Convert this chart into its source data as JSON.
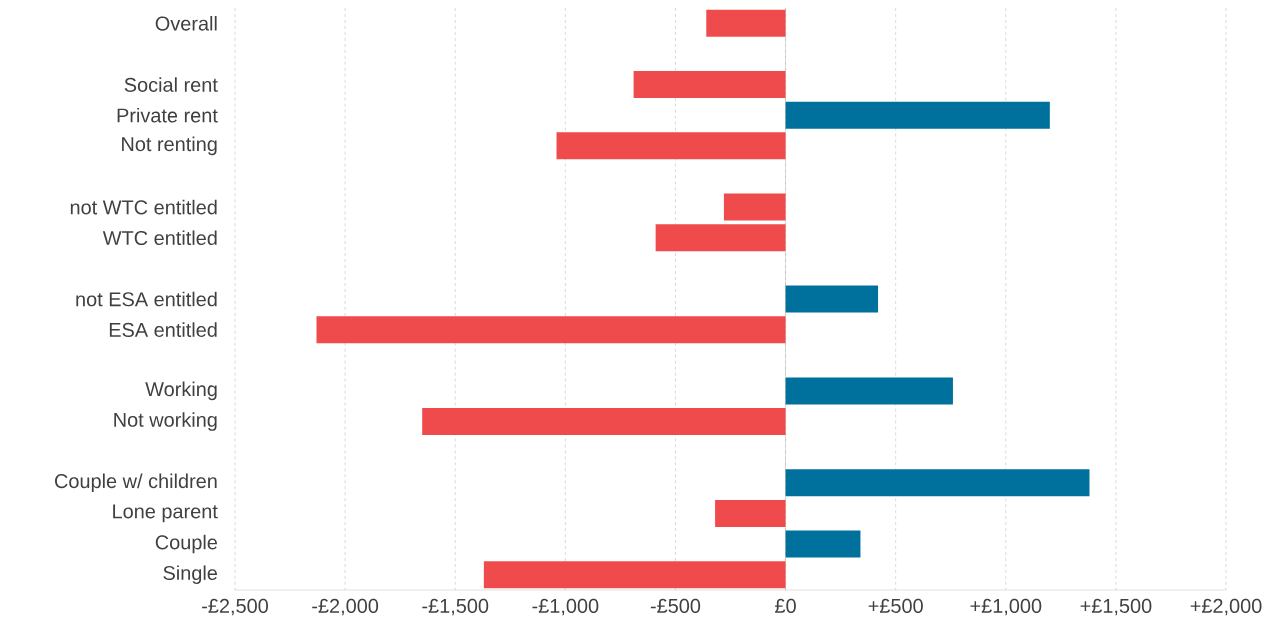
{
  "chart_data": {
    "type": "bar",
    "orientation": "horizontal",
    "categories": [
      "Overall",
      null,
      "Social rent",
      "Private rent",
      "Not renting",
      null,
      "not WTC entitled",
      "WTC entitled",
      null,
      "not ESA entitled",
      "ESA entitled",
      null,
      "Working",
      "Not working",
      null,
      "Couple w/ children",
      "Lone parent",
      "Couple",
      "Single"
    ],
    "values": [
      -360,
      null,
      -690,
      1200,
      -1040,
      null,
      -280,
      -590,
      null,
      420,
      -2130,
      null,
      760,
      -1650,
      null,
      1380,
      -320,
      340,
      -1370
    ],
    "colors": [
      "#f04b4c",
      null,
      "#f04b4c",
      "#00719c",
      "#f04b4c",
      null,
      "#f04b4c",
      "#f04b4c",
      null,
      "#00719c",
      "#f04b4c",
      null,
      "#00719c",
      "#f04b4c",
      null,
      "#00719c",
      "#f04b4c",
      "#00719c",
      "#f04b4c"
    ],
    "xlim": [
      -2500,
      2000
    ],
    "xticks": [
      {
        "value": -2500,
        "label": "-£2,500"
      },
      {
        "value": -2000,
        "label": "-£2,000"
      },
      {
        "value": -1500,
        "label": "-£1,500"
      },
      {
        "value": -1000,
        "label": "-£1,000"
      },
      {
        "value": -500,
        "label": "-£500"
      },
      {
        "value": 0,
        "label": "£0"
      },
      {
        "value": 500,
        "label": "+£500"
      },
      {
        "value": 1000,
        "label": "+£1,000"
      },
      {
        "value": 1500,
        "label": "+£1,500"
      },
      {
        "value": 2000,
        "label": "+£2,000"
      }
    ],
    "grid": "x"
  }
}
